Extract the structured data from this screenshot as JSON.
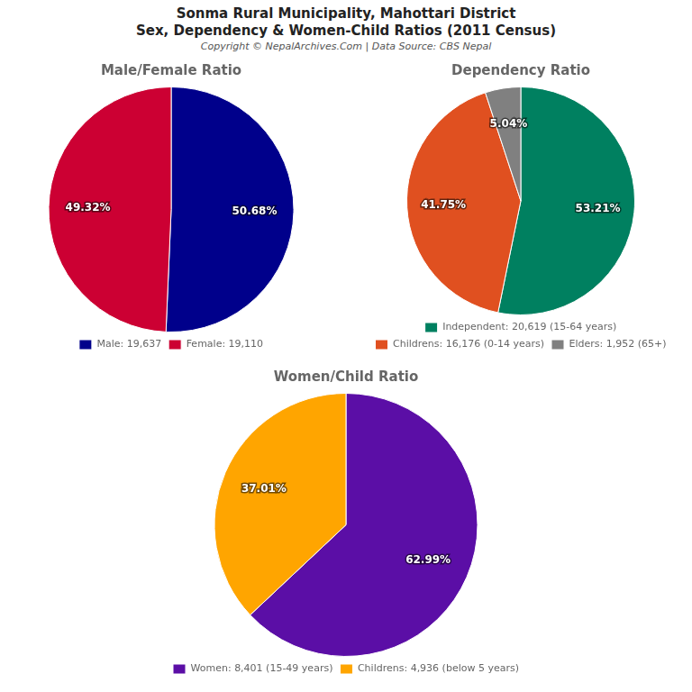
{
  "title": [
    "Sonma Rural Municipality, Mahottari District",
    "Sex, Dependency & Women-Child Ratios (2011 Census)"
  ],
  "subtitle": "Copyright © NepalArchives.Com | Data Source: CBS Nepal",
  "chart_data": [
    {
      "type": "pie",
      "title": "Male/Female Ratio",
      "categories": [
        "Male: 19,637",
        "Female: 19,110"
      ],
      "values": [
        50.68,
        49.32
      ],
      "value_labels": [
        "50.68%",
        "49.32%"
      ],
      "colors": [
        "#00008B",
        "#CC0033"
      ],
      "data_labels": true,
      "legend": "bottom"
    },
    {
      "type": "pie",
      "title": "Dependency Ratio",
      "categories": [
        "Independent: 20,619 (15-64 years)",
        "Childrens: 16,176 (0-14 years)",
        "Elders: 1,952 (65+)"
      ],
      "values": [
        53.21,
        41.75,
        5.04
      ],
      "value_labels": [
        "53.21%",
        "41.75%",
        "5.04%"
      ],
      "colors": [
        "#008060",
        "#E05020",
        "#808080"
      ],
      "data_labels": true,
      "legend": "bottom"
    },
    {
      "type": "pie",
      "title": "Women/Child Ratio",
      "categories": [
        "Women: 8,401 (15-49 years)",
        "Childrens: 4,936 (below 5 years)"
      ],
      "values": [
        62.99,
        37.01
      ],
      "value_labels": [
        "62.99%",
        "37.01%"
      ],
      "colors": [
        "#5B0EA6",
        "#FFA500"
      ],
      "data_labels": true,
      "legend": "bottom"
    }
  ]
}
